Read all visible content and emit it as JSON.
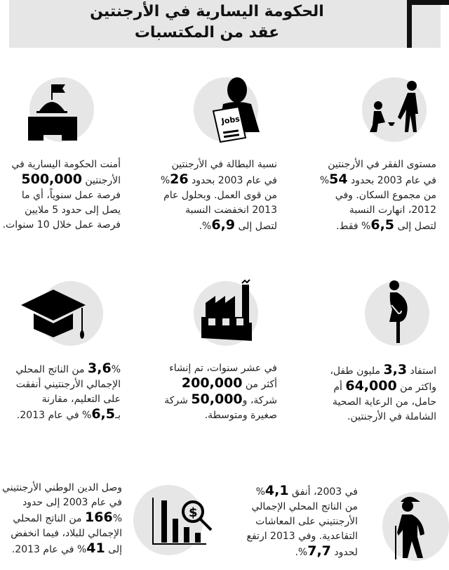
{
  "header": {
    "title_line1": "الحكومة اليسارية في الأرجنتين",
    "title_line2": "عقد من المكتسبات"
  },
  "blocks": [
    {
      "id": "poverty",
      "icon": "poverty-icon",
      "lines": [
        {
          "a": "مستوى الفقر في الأرجنتين"
        },
        {
          "a": "في عام 2003 بحدود ",
          "b": "54",
          "c": "%"
        },
        {
          "a": "من مجموع السكان. وفي"
        },
        {
          "a": "2012، انهارت النسبة"
        },
        {
          "a": "لتصل إلى ",
          "b": "6,5",
          "c": "% فقط."
        }
      ]
    },
    {
      "id": "unemployment",
      "icon": "jobs-icon",
      "lines": [
        {
          "a": "نسبة البطالة في الأرجنتين"
        },
        {
          "a": "في عام 2003 بحدود ",
          "b": "26",
          "c": "%"
        },
        {
          "a": "من قوى العمل. وبحلول عام"
        },
        {
          "a": "2013 انخفضت النسبة"
        },
        {
          "a": "لتصل إلى ",
          "b": "6,9",
          "c": "%."
        }
      ]
    },
    {
      "id": "jobs-created",
      "icon": "government-building-icon",
      "lines": [
        {
          "a": "أمنت الحكومة اليسارية في"
        },
        {
          "a": "الأرجنتين ",
          "b": "500,000"
        },
        {
          "a": "فرصة عمل سنوياً، أي ما"
        },
        {
          "a": "يصل إلى حدود 5 ملايين"
        },
        {
          "a": "فرصة عمل خلال 10 سنوات."
        }
      ]
    },
    {
      "id": "healthcare",
      "icon": "pregnant-woman-icon",
      "lines": [
        {
          "a": "استفاد ",
          "b": "3,3",
          "c": " مليون طفل،"
        },
        {
          "a": "واكثر من ",
          "b": "64,000",
          "c": " أم"
        },
        {
          "a": "حامل، من الرعاية الصحية"
        },
        {
          "a": "الشاملة في الأرجنتين."
        }
      ]
    },
    {
      "id": "companies",
      "icon": "factory-icon",
      "lines": [
        {
          "a": "في عشر سنوات، تم إنشاء"
        },
        {
          "a": "أكثر من ",
          "b": "200,000"
        },
        {
          "a": "شركة، و",
          "b": "50,000",
          "c": " شركة"
        },
        {
          "a": "صغيرة ومتوسطة."
        }
      ]
    },
    {
      "id": "education",
      "icon": "graduation-cap-icon",
      "lines": [
        {
          "b": "3,6",
          "c": "% من الناتج المحلي"
        },
        {
          "a": "الإجمالي الأرجنتيني أنفقت"
        },
        {
          "a": "على التعليم، مقارنة"
        },
        {
          "a": "بـ",
          "b": "6,5",
          "c": "% في عام 2013."
        }
      ]
    },
    {
      "id": "pensions",
      "icon": "elderly-man-icon",
      "lines": [
        {
          "a": "في 2003، أنفق ",
          "b": "4,1",
          "c": "%"
        },
        {
          "a": "من الناتج المحلي الإجمالي"
        },
        {
          "a": "الأرجنتيني على المعاشات"
        },
        {
          "a": "التقاعدية. وفي 2013 ارتفع"
        },
        {
          "a": "لحدود ",
          "b": "7,7",
          "c": "%."
        }
      ]
    },
    {
      "id": "debt",
      "icon": "debt-chart-icon",
      "lines": [
        {
          "a": "وصل الدين الوطني الأرجنتيني"
        },
        {
          "a": "في عام 2003 إلى حدود"
        },
        {
          "b": "166",
          "c": "% من الناتج المحلي"
        },
        {
          "a": "الإجمالي للبلاد، فيما انخفض"
        },
        {
          "a": "إلى ",
          "b": "41",
          "c": "% في عام 2013."
        }
      ]
    }
  ]
}
